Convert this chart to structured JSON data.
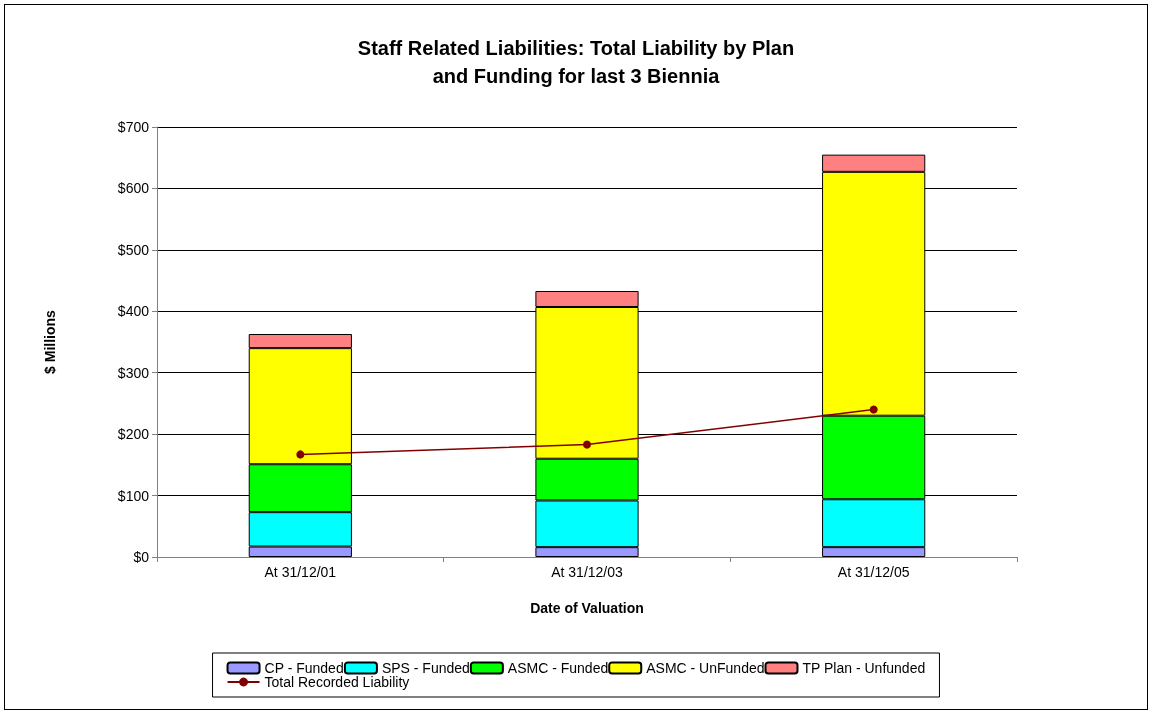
{
  "chart_data": {
    "type": "bar",
    "title": "Staff Related Liabilities: Total Liability by Plan\nand Funding for last 3 Biennia",
    "xlabel": "Date of Valuation",
    "ylabel": "$ Millions",
    "categories": [
      "At 31/12/01",
      "At 31/12/03",
      "At 31/12/05"
    ],
    "stacked": true,
    "ylim": [
      0,
      700
    ],
    "yticks": [
      {
        "value": 0,
        "label": "$0"
      },
      {
        "value": 100,
        "label": "$100"
      },
      {
        "value": 200,
        "label": "$200"
      },
      {
        "value": 300,
        "label": "$300"
      },
      {
        "value": 400,
        "label": "$400"
      },
      {
        "value": 500,
        "label": "$500"
      },
      {
        "value": 600,
        "label": "$600"
      },
      {
        "value": 700,
        "label": "$700"
      }
    ],
    "grid": "y",
    "legend": "bottom",
    "series": [
      {
        "name": "CP - Funded",
        "color": "#9999ff",
        "values": [
          17,
          16,
          16
        ]
      },
      {
        "name": "SPS - Funded",
        "color": "#00ffff",
        "values": [
          56,
          76,
          78
        ]
      },
      {
        "name": "ASMC - Funded",
        "color": "#00ff00",
        "values": [
          78,
          68,
          136
        ]
      },
      {
        "name": "ASMC - UnFunded",
        "color": "#ffff00",
        "values": [
          189,
          247,
          397
        ]
      },
      {
        "name": "TP Plan - Unfunded",
        "color": "#ff8080",
        "values": [
          23,
          26,
          28
        ]
      },
      {
        "name": "Total Recorded Liability",
        "type": "line",
        "color": "#800000",
        "marker": "circle",
        "values": [
          167,
          183,
          240
        ]
      }
    ]
  }
}
